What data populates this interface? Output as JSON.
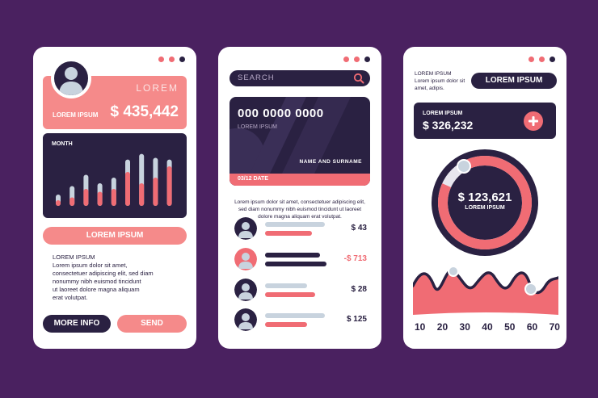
{
  "colors": {
    "background": "#4a2160",
    "navy": "#2a2142",
    "coral": "#f06c74",
    "salmon": "#f58a8a",
    "bar_light": "#c8d3de"
  },
  "phone1": {
    "header": {
      "lorem": "LOREM",
      "label": "LOREM IPSUM",
      "amount": "$ 435,442",
      "avatar_icon": "user-icon"
    },
    "chart": {
      "title": "MONTH",
      "bar_values": [
        [
          0.2,
          0.1
        ],
        [
          0.35,
          0.15
        ],
        [
          0.55,
          0.3
        ],
        [
          0.4,
          0.25
        ],
        [
          0.5,
          0.3
        ],
        [
          0.82,
          0.6
        ],
        [
          0.92,
          0.4
        ],
        [
          0.85,
          0.5
        ],
        [
          0.82,
          0.7
        ]
      ]
    },
    "main_button": "LOREM IPSUM",
    "body_text": "LOREM IPSUM\nLorem ipsum dolor sit amet,\nconsectetuer adipiscing elit, sed diam\nnonummy nibh euismod tincidunt\nut laoreet dolore magna aliquam\nerat volutpat.",
    "more_button": "MORE INFO",
    "send_button": "SEND"
  },
  "phone2": {
    "search_placeholder": "SEARCH",
    "card": {
      "number": "000 0000 0000",
      "label": "LOREM IPSUM",
      "holder": "NAME AND SURNAME",
      "date": "03/12 DATE"
    },
    "description": "Lorem ipsum dolor sit amet, consectetuer adipiscing elit, sed diam nonummy nibh euismod tincidunt ut laoreet dolore magna aliquam erat volutpat.",
    "transactions": [
      {
        "amount": "$ 43",
        "avatar": "navy",
        "negative": false,
        "line1": 0.74,
        "line2": 0.58
      },
      {
        "amount": "-$ 713",
        "avatar": "coral",
        "negative": true,
        "line1": 0.68,
        "line2": 0.76
      },
      {
        "amount": "$ 28",
        "avatar": "navy",
        "negative": false,
        "line1": 0.52,
        "line2": 0.62
      },
      {
        "amount": "$ 125",
        "avatar": "navy",
        "negative": false,
        "line1": 0.74,
        "line2": 0.52
      }
    ]
  },
  "phone3": {
    "top_text": "LOREM IPSUM\nLorem ipsum dolor sit\namet, adipis.",
    "button": "LOREM IPSUM",
    "balance": {
      "label": "LOREM IPSUM",
      "amount": "$ 326,232",
      "action_icon": "plus-icon"
    },
    "donut": {
      "amount": "$ 123,621",
      "label": "LOREM IPSUM",
      "progress": 0.9
    },
    "wave": {
      "x_ticks": [
        "10",
        "20",
        "30",
        "40",
        "50",
        "60",
        "70"
      ]
    }
  }
}
